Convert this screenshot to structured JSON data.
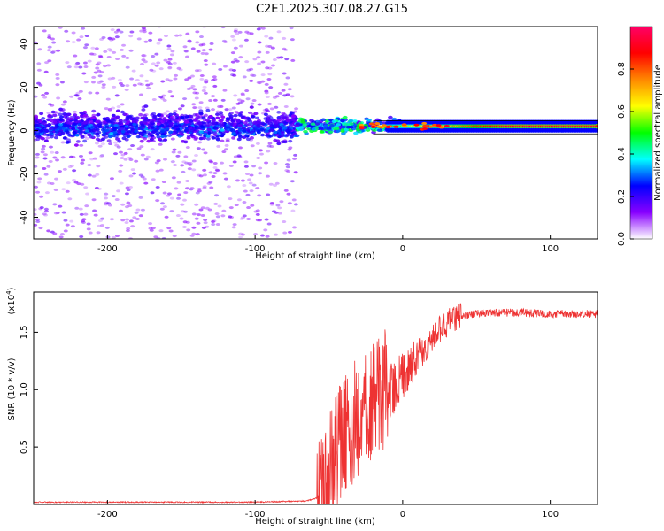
{
  "title": "C2E1.2025.307.08.27.G15",
  "chart_data": [
    {
      "type": "heatmap",
      "id": "spectrogram",
      "xlabel": "Height of straight line (km)",
      "ylabel": "Frequency (Hz)",
      "xlim": [
        -250,
        132
      ],
      "ylim": [
        -50,
        48
      ],
      "xticks": [
        -200,
        -100,
        0,
        100
      ],
      "yticks": [
        -40,
        -20,
        0,
        20,
        40
      ],
      "xtick_labels": [
        "-200",
        "-100",
        "0",
        "100"
      ],
      "ytick_labels": [
        "-40",
        "-20",
        "0",
        "20",
        "40"
      ],
      "colorbar": {
        "label": "Normalized spectral amplitude",
        "range": [
          0,
          1
        ],
        "ticks": [
          0.0,
          0.2,
          0.4,
          0.6,
          0.8
        ],
        "tick_labels": [
          "0.0",
          "0.2",
          "0.4",
          "0.6",
          "0.8"
        ],
        "colors": [
          "#ffffff",
          "#8800ff",
          "#0000ff",
          "#00ffff",
          "#00ff00",
          "#ffff00",
          "#ff8800",
          "#ff0000",
          "#ff0066"
        ]
      },
      "features": {
        "noise_region_x": [
          -250,
          -72
        ],
        "signal_center_freq_hz": 2,
        "reference_line_freq_hz": [
          -1.5,
          4.5
        ],
        "reference_line_x": [
          -20,
          132
        ]
      }
    },
    {
      "type": "line",
      "id": "snr",
      "xlabel": "Height of straight line (km)",
      "ylabel": "SNR (10 * v/v)",
      "y_scale_label": "(x10",
      "y_scale_exponent": "4",
      "xlim": [
        -250,
        132
      ],
      "ylim": [
        0,
        1.85
      ],
      "xticks": [
        -200,
        -100,
        0,
        100
      ],
      "yticks": [
        0.5,
        1.0,
        1.5
      ],
      "xtick_labels": [
        "-200",
        "-100",
        "0",
        "100"
      ],
      "ytick_labels": [
        "0.5",
        "1.0",
        "1.5"
      ],
      "series": [
        {
          "name": "SNR",
          "color": "#ee3333",
          "anchors": [
            [
              -250,
              0.02
            ],
            [
              -150,
              0.02
            ],
            [
              -100,
              0.02
            ],
            [
              -65,
              0.03
            ],
            [
              -57,
              0.06
            ],
            [
              -54,
              0.15
            ],
            [
              -50,
              0.25
            ],
            [
              -45,
              0.4
            ],
            [
              -40,
              0.6
            ],
            [
              -35,
              0.7
            ],
            [
              -30,
              0.75
            ],
            [
              -25,
              0.8
            ],
            [
              -20,
              0.85
            ],
            [
              -15,
              0.95
            ],
            [
              -10,
              1.0
            ],
            [
              -5,
              1.05
            ],
            [
              0,
              1.1
            ],
            [
              5,
              1.2
            ],
            [
              10,
              1.3
            ],
            [
              15,
              1.35
            ],
            [
              20,
              1.45
            ],
            [
              25,
              1.52
            ],
            [
              30,
              1.58
            ],
            [
              35,
              1.62
            ],
            [
              40,
              1.64
            ],
            [
              50,
              1.66
            ],
            [
              60,
              1.67
            ],
            [
              80,
              1.67
            ],
            [
              100,
              1.66
            ],
            [
              132,
              1.66
            ]
          ]
        }
      ]
    }
  ]
}
